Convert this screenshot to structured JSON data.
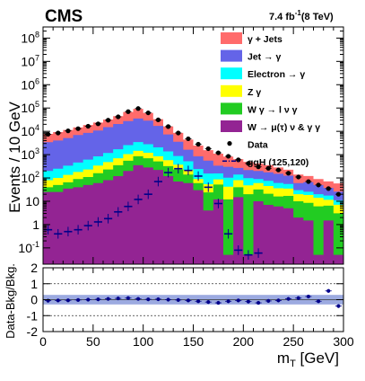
{
  "header": {
    "experiment": "CMS",
    "lumi_value": "7.4 fb",
    "lumi_exp": "-1",
    "energy": "(8 TeV)"
  },
  "colors": {
    "gjets": "#ff6b6b",
    "jetfake": "#6464e8",
    "efake": "#00ffff",
    "zg": "#ffff00",
    "wg": "#22cc22",
    "wmu": "#932493",
    "data": "#000000",
    "signal": "#00008b",
    "band": "#7b8dd6"
  },
  "chart_data": [
    {
      "type": "area",
      "stacked": true,
      "ylabel": "Events / 10 GeV",
      "ylog": true,
      "ylim": [
        0.02,
        300000000
      ],
      "xlim": [
        0,
        300
      ],
      "y_ticks": [
        {
          "v": 0.1,
          "b": "10",
          "e": "-1"
        },
        {
          "v": 1,
          "b": "1",
          "e": ""
        },
        {
          "v": 10,
          "b": "10",
          "e": ""
        },
        {
          "v": 100,
          "b": "10",
          "e": "2"
        },
        {
          "v": 1000,
          "b": "10",
          "e": "3"
        },
        {
          "v": 10000,
          "b": "10",
          "e": "4"
        },
        {
          "v": 100000,
          "b": "10",
          "e": "5"
        },
        {
          "v": 1000000,
          "b": "10",
          "e": "6"
        },
        {
          "v": 10000000,
          "b": "10",
          "e": "7"
        },
        {
          "v": 100000000,
          "b": "10",
          "e": "8"
        }
      ],
      "bin_edges": [
        0,
        10,
        20,
        30,
        40,
        50,
        60,
        70,
        80,
        90,
        100,
        110,
        120,
        130,
        140,
        150,
        160,
        170,
        180,
        190,
        200,
        210,
        220,
        230,
        240,
        250,
        260,
        270,
        280,
        290,
        300
      ],
      "legend_order": [
        "gjets",
        "jetfake",
        "efake",
        "zg",
        "wg",
        "wmu",
        "data",
        "signal"
      ],
      "series": [
        {
          "key": "wmu",
          "name": "W → μ(τ) ν & γ γ",
          "values": [
            25,
            25,
            35,
            40,
            50,
            60,
            80,
            120,
            200,
            350,
            280,
            220,
            120,
            70,
            60,
            30,
            4,
            12,
            0.05,
            15,
            0.05,
            10,
            7,
            6,
            5,
            2,
            1.5,
            0.05,
            1.5,
            0.05
          ]
        },
        {
          "key": "wg",
          "name": "W γ → l ν γ",
          "values": [
            15,
            25,
            30,
            50,
            60,
            100,
            150,
            230,
            350,
            500,
            420,
            290,
            200,
            160,
            80,
            30,
            20,
            40,
            12,
            25,
            20,
            22,
            14,
            10,
            12,
            8,
            7,
            6,
            5,
            3
          ]
        },
        {
          "key": "zg",
          "name": "Z γ",
          "values": [
            40,
            50,
            70,
            90,
            120,
            180,
            250,
            350,
            500,
            600,
            500,
            340,
            260,
            140,
            80,
            30,
            30,
            35,
            30,
            40,
            28,
            28,
            24,
            20,
            18,
            10,
            10,
            8,
            5,
            4
          ]
        },
        {
          "key": "efake",
          "name": "Electron → γ",
          "values": [
            120,
            150,
            200,
            280,
            380,
            500,
            700,
            1000,
            1500,
            2000,
            1600,
            1200,
            800,
            500,
            300,
            150,
            100,
            70,
            60,
            60,
            50,
            30,
            30,
            25,
            20,
            10,
            7,
            6,
            6,
            4
          ]
        },
        {
          "key": "jetfake",
          "name": "Jet → γ",
          "values": [
            3200,
            3800,
            4800,
            6500,
            8000,
            10000,
            14000,
            19000,
            25000,
            32000,
            26000,
            15000,
            6000,
            2700,
            1100,
            600,
            400,
            180,
            200,
            130,
            120,
            110,
            100,
            90,
            70,
            30,
            40,
            30,
            20,
            15
          ]
        },
        {
          "key": "gjets",
          "name": "γ + Jets",
          "values": [
            4400,
            5200,
            6300,
            7800,
            10000,
            13000,
            17000,
            24000,
            40000,
            57000,
            33000,
            16000,
            9000,
            5000,
            2800,
            1600,
            1000,
            770,
            520,
            370,
            270,
            220,
            180,
            130,
            100,
            80,
            55,
            40,
            34,
            32
          ]
        }
      ],
      "data": {
        "name": "Data",
        "values": [
          7500,
          8500,
          10500,
          13000,
          16500,
          21000,
          30000,
          42000,
          70000,
          95000,
          62000,
          31000,
          16000,
          8500,
          4800,
          2800,
          1800,
          1200,
          850,
          600,
          420,
          300,
          260,
          220,
          160,
          110,
          70,
          50,
          35,
          20
        ]
      },
      "signal": {
        "name": "ggH (125,120)",
        "values": [
          0.6,
          0.4,
          0.5,
          0.6,
          0.9,
          1.3,
          1.8,
          3.5,
          6,
          12,
          20,
          70,
          170,
          250,
          210,
          120,
          40,
          8,
          0.4,
          0.08,
          0.05,
          0.06
        ]
      }
    },
    {
      "type": "scatter",
      "ylabel": "Data-Bkg/Bkg.",
      "xlabel": "m",
      "xlabel_sub": "T",
      "xlabel_unit": " [GeV]",
      "ylim": [
        -2,
        2
      ],
      "xlim": [
        0,
        300
      ],
      "x_ticks": [
        0,
        50,
        100,
        150,
        200,
        250,
        300
      ],
      "y_ticks": [
        -2,
        -1,
        0,
        1,
        2
      ],
      "ratio": [
        -0.06,
        -0.05,
        -0.04,
        -0.02,
        0.0,
        0.02,
        0.05,
        0.08,
        0.1,
        0.05,
        0.02,
        0.03,
        0.0,
        -0.02,
        -0.05,
        -0.1,
        -0.15,
        -0.2,
        -0.1,
        -0.05,
        -0.12,
        -0.2,
        -0.08,
        -0.05,
        0.05,
        0.1,
        0.2,
        -0.1,
        0.55,
        -0.4
      ],
      "band_halfwidth": 0.3
    }
  ]
}
